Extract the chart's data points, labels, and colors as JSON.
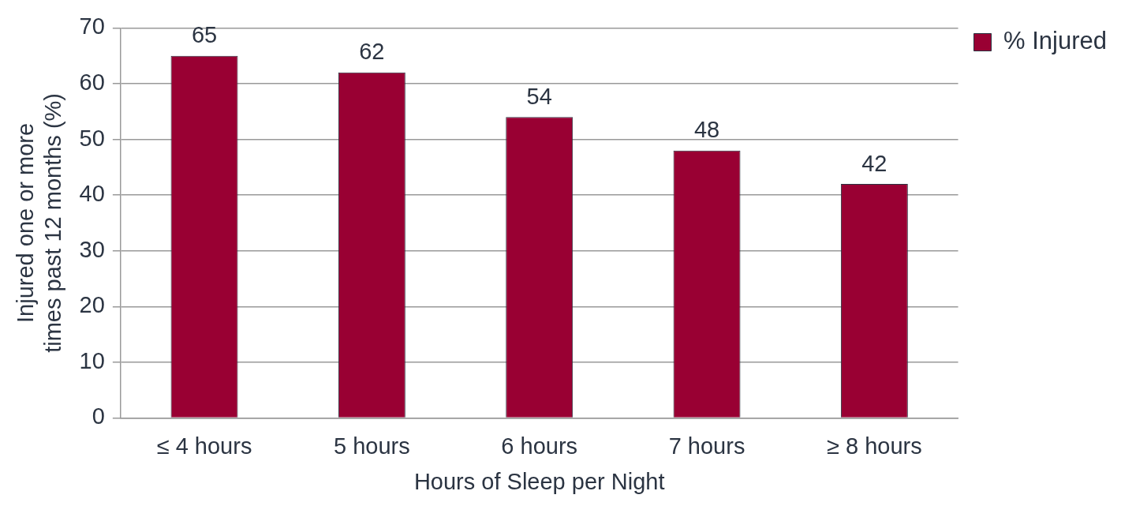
{
  "chart_data": {
    "type": "bar",
    "xlabel": "Hours of Sleep per Night",
    "ylabel": "Injured one or more times past 12 months (%)",
    "categories": [
      "≤ 4 hours",
      "5 hours",
      "6 hours",
      "7 hours",
      "≥ 8 hours"
    ],
    "series": [
      {
        "name": "% Injured",
        "color": "#990033",
        "values": [
          65,
          62,
          54,
          48,
          42
        ]
      }
    ],
    "ylim": [
      0,
      70
    ],
    "yticks": [
      0,
      10,
      20,
      30,
      40,
      50,
      60,
      70
    ],
    "grid": "y",
    "legend": "top right",
    "data_labels": true
  }
}
